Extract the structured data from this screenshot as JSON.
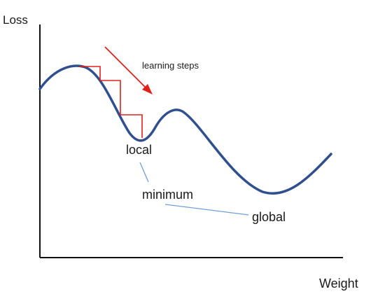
{
  "axes": {
    "y_label": "Loss",
    "x_label": "Weight"
  },
  "annotations": {
    "learning_steps": "learning steps",
    "local": "local",
    "minimum": "minimum",
    "global": "global"
  },
  "colors": {
    "curve": "#2f4f8f",
    "steps": "#e0201b",
    "arrow": "#e0201b",
    "connector": "#6fa0d8",
    "axis": "#111111",
    "text": "#1a1a1a"
  }
}
